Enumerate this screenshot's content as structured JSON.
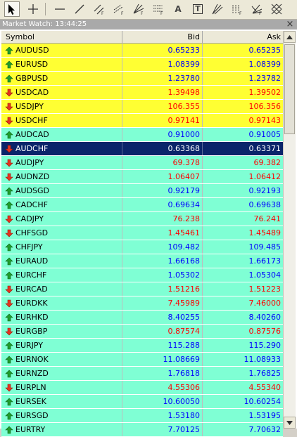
{
  "toolbar": {
    "tools": [
      "cursor",
      "crosshair",
      "horizontal-line",
      "trendline",
      "equidistant-channel",
      "standard-deviation-channel",
      "gann-fan",
      "fibonacci-retracement",
      "text",
      "text-label",
      "andrews-pitchfork",
      "fibonacci-channel",
      "fibonacci-fan",
      "grid"
    ],
    "text_tool_label": "A",
    "label_tool_label": "T"
  },
  "window": {
    "title": "Market Watch: 13:44:25",
    "close_label": "×"
  },
  "columns": {
    "symbol": "Symbol",
    "bid": "Bid",
    "ask": "Ask"
  },
  "colors": {
    "up": "#0000ff",
    "down": "#ff0000",
    "highlight_yellow": "#ffff33",
    "row_cyan": "#7fffd4",
    "selected": "#0a246a"
  },
  "rows": [
    {
      "symbol": "AUDUSD",
      "bid": "0.65233",
      "ask": "0.65235",
      "dir": "up",
      "bg": "yellow"
    },
    {
      "symbol": "EURUSD",
      "bid": "1.08399",
      "ask": "1.08399",
      "dir": "up",
      "bg": "yellow"
    },
    {
      "symbol": "GBPUSD",
      "bid": "1.23780",
      "ask": "1.23782",
      "dir": "up",
      "bg": "yellow"
    },
    {
      "symbol": "USDCAD",
      "bid": "1.39498",
      "ask": "1.39502",
      "dir": "down",
      "bg": "yellow"
    },
    {
      "symbol": "USDJPY",
      "bid": "106.355",
      "ask": "106.356",
      "dir": "down",
      "bg": "yellow"
    },
    {
      "symbol": "USDCHF",
      "bid": "0.97141",
      "ask": "0.97143",
      "dir": "down",
      "bg": "yellow"
    },
    {
      "symbol": "AUDCAD",
      "bid": "0.91000",
      "ask": "0.91005",
      "dir": "up",
      "bg": "cyan"
    },
    {
      "symbol": "AUDCHF",
      "bid": "0.63368",
      "ask": "0.63371",
      "dir": "down",
      "bg": "selected"
    },
    {
      "symbol": "AUDJPY",
      "bid": "69.378",
      "ask": "69.382",
      "dir": "down",
      "bg": "cyan"
    },
    {
      "symbol": "AUDNZD",
      "bid": "1.06407",
      "ask": "1.06412",
      "dir": "down",
      "bg": "cyan"
    },
    {
      "symbol": "AUDSGD",
      "bid": "0.92179",
      "ask": "0.92193",
      "dir": "up",
      "bg": "cyan"
    },
    {
      "symbol": "CADCHF",
      "bid": "0.69634",
      "ask": "0.69638",
      "dir": "up",
      "bg": "cyan"
    },
    {
      "symbol": "CADJPY",
      "bid": "76.238",
      "ask": "76.241",
      "dir": "down",
      "bg": "cyan"
    },
    {
      "symbol": "CHFSGD",
      "bid": "1.45461",
      "ask": "1.45489",
      "dir": "down",
      "bg": "cyan"
    },
    {
      "symbol": "CHFJPY",
      "bid": "109.482",
      "ask": "109.485",
      "dir": "up",
      "bg": "cyan"
    },
    {
      "symbol": "EURAUD",
      "bid": "1.66168",
      "ask": "1.66173",
      "dir": "up",
      "bg": "cyan"
    },
    {
      "symbol": "EURCHF",
      "bid": "1.05302",
      "ask": "1.05304",
      "dir": "up",
      "bg": "cyan"
    },
    {
      "symbol": "EURCAD",
      "bid": "1.51216",
      "ask": "1.51223",
      "dir": "down",
      "bg": "cyan"
    },
    {
      "symbol": "EURDKK",
      "bid": "7.45989",
      "ask": "7.46000",
      "dir": "down",
      "bg": "cyan"
    },
    {
      "symbol": "EURHKD",
      "bid": "8.40255",
      "ask": "8.40260",
      "dir": "up",
      "bg": "cyan"
    },
    {
      "symbol": "EURGBP",
      "bid": "0.87574",
      "ask": "0.87576",
      "dir": "down",
      "bg": "cyan"
    },
    {
      "symbol": "EURJPY",
      "bid": "115.288",
      "ask": "115.290",
      "dir": "up",
      "bg": "cyan"
    },
    {
      "symbol": "EURNOK",
      "bid": "11.08669",
      "ask": "11.08933",
      "dir": "up",
      "bg": "cyan"
    },
    {
      "symbol": "EURNZD",
      "bid": "1.76818",
      "ask": "1.76825",
      "dir": "up",
      "bg": "cyan"
    },
    {
      "symbol": "EURPLN",
      "bid": "4.55306",
      "ask": "4.55340",
      "dir": "down",
      "bg": "cyan"
    },
    {
      "symbol": "EURSEK",
      "bid": "10.60050",
      "ask": "10.60254",
      "dir": "up",
      "bg": "cyan"
    },
    {
      "symbol": "EURSGD",
      "bid": "1.53180",
      "ask": "1.53195",
      "dir": "up",
      "bg": "cyan"
    },
    {
      "symbol": "EURTRY",
      "bid": "7.70125",
      "ask": "7.70632",
      "dir": "up",
      "bg": "cyan"
    }
  ]
}
